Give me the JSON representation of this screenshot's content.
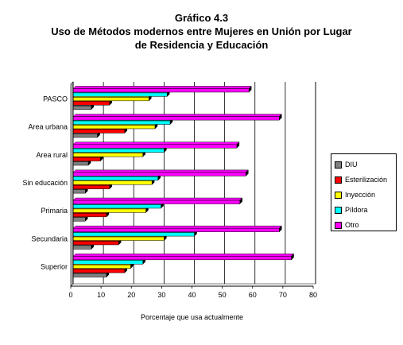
{
  "title": "Gráfico 4.3",
  "subtitle_line1": "Uso de Métodos modernos entre Mujeres en Unión por Lugar",
  "subtitle_line2": "de Residencia y Educación",
  "chart_data": {
    "type": "bar",
    "orientation": "horizontal",
    "title": "Gráfico 4.3 Uso de Métodos modernos entre Mujeres en Unión por Lugar de Residencia y Educación",
    "xlabel": "Porcentaje que usa actualmente",
    "ylabel": "",
    "xlim": [
      0,
      80
    ],
    "xticks": [
      0,
      10,
      20,
      30,
      40,
      50,
      60,
      70,
      80
    ],
    "grid": "vertical",
    "legend_position": "right",
    "categories": [
      "PASCO",
      "Area urbana",
      "Area rural",
      "Sin educación",
      "Primaria",
      "Secundaria",
      "Superior"
    ],
    "series": [
      {
        "name": "DIU",
        "color": "#808080",
        "values": [
          6,
          8,
          5,
          4,
          4,
          6,
          11
        ]
      },
      {
        "name": "Esterilización",
        "color": "#ff0000",
        "values": [
          12,
          17,
          9,
          12,
          11,
          15,
          17
        ]
      },
      {
        "name": "Inyección",
        "color": "#ffff00",
        "values": [
          25,
          27,
          23,
          26,
          24,
          30,
          19
        ]
      },
      {
        "name": "Píldora",
        "color": "#00ffff",
        "values": [
          31,
          32,
          30,
          28,
          29,
          40,
          23
        ]
      },
      {
        "name": "Otro",
        "color": "#ff00ff",
        "values": [
          58,
          68,
          54,
          57,
          55,
          68,
          72
        ]
      }
    ]
  }
}
